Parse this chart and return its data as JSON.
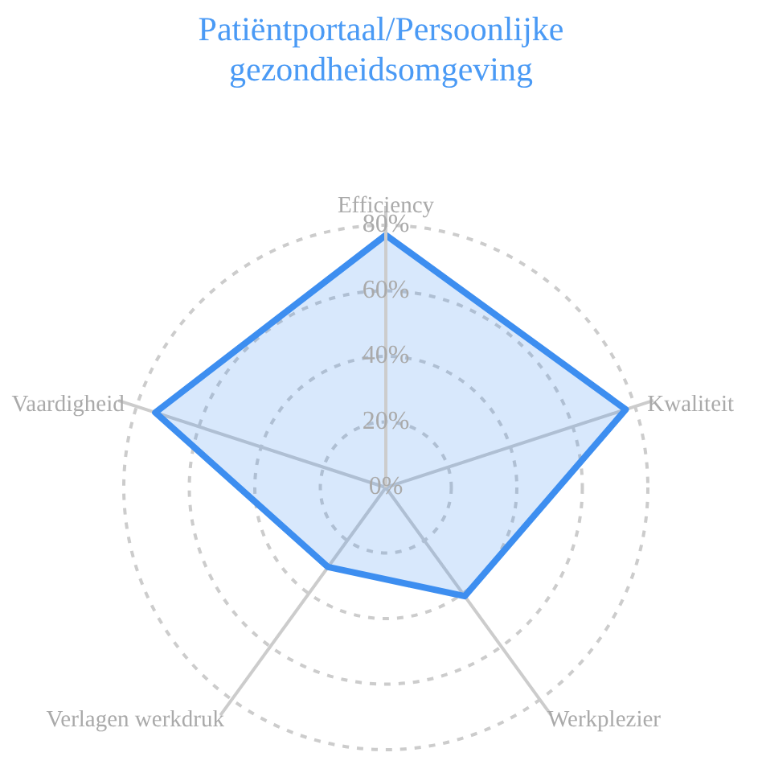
{
  "chart_data": {
    "type": "radar",
    "title": "Patiëntportaal/Persoonlijke gezondheidsomgeving",
    "categories": [
      "Efficiency",
      "Kwaliteit",
      "Werkplezier",
      "Verlagen werkdruk",
      "Vaardigheid"
    ],
    "series": [
      {
        "color": "#3d8ef0",
        "values": [
          77,
          77,
          41,
          30,
          74
        ]
      }
    ],
    "ylim": [
      0,
      80
    ],
    "yticks": [
      {
        "value": 0,
        "label": "0%"
      },
      {
        "value": 20,
        "label": "20%"
      },
      {
        "value": 40,
        "label": "40%"
      },
      {
        "value": 60,
        "label": "60%"
      },
      {
        "value": 80,
        "label": "80%"
      }
    ],
    "grid": true,
    "legend": false
  }
}
